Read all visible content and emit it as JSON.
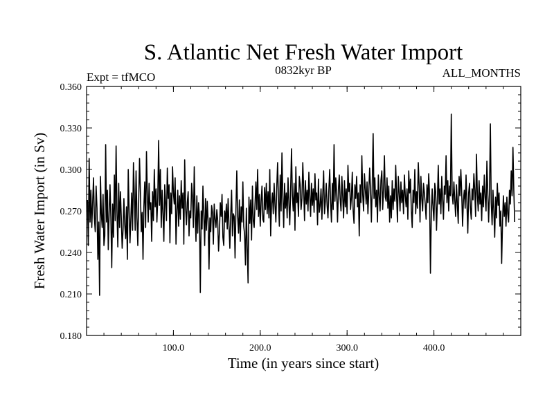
{
  "chart_data": {
    "type": "line",
    "title": "S. Atlantic Net Fresh Water Import",
    "subtitle_left": "Expt = tfMCO",
    "subtitle_center": "0832kyr BP",
    "subtitle_right": "ALL_MONTHS",
    "xlabel": "Time (in years since start)",
    "ylabel": "Fresh Water Import (in Sv)",
    "xlim": [
      0,
      500
    ],
    "ylim": [
      0.18,
      0.36
    ],
    "x_ticks": [
      100,
      200,
      300,
      400
    ],
    "x_tick_labels": [
      "100.0",
      "200.0",
      "300.0",
      "400.0"
    ],
    "y_ticks": [
      0.18,
      0.21,
      0.24,
      0.27,
      0.3,
      0.33,
      0.36
    ],
    "y_tick_labels": [
      "0.180",
      "0.210",
      "0.240",
      "0.270",
      "0.300",
      "0.330",
      "0.360"
    ],
    "series": [
      {
        "name": "fresh_water_import",
        "x_start": 1,
        "x_step": 1,
        "values": [
          0.278,
          0.245,
          0.308,
          0.262,
          0.285,
          0.258,
          0.276,
          0.294,
          0.265,
          0.255,
          0.288,
          0.272,
          0.235,
          0.262,
          0.209,
          0.295,
          0.268,
          0.258,
          0.282,
          0.245,
          0.252,
          0.318,
          0.262,
          0.285,
          0.242,
          0.268,
          0.289,
          0.265,
          0.229,
          0.275,
          0.251,
          0.296,
          0.263,
          0.317,
          0.27,
          0.244,
          0.29,
          0.258,
          0.284,
          0.265,
          0.243,
          0.256,
          0.279,
          0.26,
          0.25,
          0.273,
          0.235,
          0.3,
          0.27,
          0.247,
          0.264,
          0.283,
          0.256,
          0.305,
          0.282,
          0.256,
          0.299,
          0.266,
          0.245,
          0.276,
          0.308,
          0.284,
          0.255,
          0.269,
          0.235,
          0.273,
          0.291,
          0.258,
          0.313,
          0.281,
          0.262,
          0.29,
          0.271,
          0.276,
          0.248,
          0.284,
          0.263,
          0.3,
          0.273,
          0.286,
          0.262,
          0.279,
          0.321,
          0.274,
          0.3,
          0.258,
          0.285,
          0.268,
          0.248,
          0.289,
          0.276,
          0.263,
          0.301,
          0.279,
          0.289,
          0.247,
          0.283,
          0.268,
          0.302,
          0.283,
          0.275,
          0.294,
          0.246,
          0.27,
          0.285,
          0.259,
          0.281,
          0.264,
          0.292,
          0.272,
          0.283,
          0.246,
          0.307,
          0.273,
          0.26,
          0.276,
          0.284,
          0.252,
          0.27,
          0.265,
          0.29,
          0.28,
          0.258,
          0.302,
          0.269,
          0.248,
          0.281,
          0.254,
          0.276,
          0.266,
          0.211,
          0.27,
          0.257,
          0.288,
          0.268,
          0.245,
          0.279,
          0.256,
          0.277,
          0.262,
          0.228,
          0.265,
          0.255,
          0.274,
          0.269,
          0.246,
          0.275,
          0.264,
          0.258,
          0.271,
          0.263,
          0.241,
          0.254,
          0.276,
          0.266,
          0.282,
          0.251,
          0.245,
          0.27,
          0.262,
          0.275,
          0.257,
          0.279,
          0.26,
          0.243,
          0.267,
          0.285,
          0.252,
          0.268,
          0.266,
          0.236,
          0.271,
          0.299,
          0.266,
          0.254,
          0.278,
          0.248,
          0.273,
          0.262,
          0.291,
          0.259,
          0.253,
          0.231,
          0.272,
          0.244,
          0.218,
          0.28,
          0.261,
          0.278,
          0.249,
          0.288,
          0.263,
          0.258,
          0.275,
          0.291,
          0.271,
          0.3,
          0.266,
          0.282,
          0.259,
          0.277,
          0.288,
          0.264,
          0.262,
          0.287,
          0.271,
          0.29,
          0.268,
          0.284,
          0.265,
          0.3,
          0.252,
          0.275,
          0.283,
          0.268,
          0.29,
          0.274,
          0.262,
          0.287,
          0.305,
          0.278,
          0.259,
          0.296,
          0.27,
          0.312,
          0.281,
          0.258,
          0.29,
          0.272,
          0.283,
          0.265,
          0.294,
          0.276,
          0.26,
          0.285,
          0.315,
          0.281,
          0.27,
          0.29,
          0.256,
          0.302,
          0.276,
          0.283,
          0.266,
          0.295,
          0.289,
          0.271,
          0.279,
          0.305,
          0.286,
          0.263,
          0.292,
          0.275,
          0.285,
          0.27,
          0.298,
          0.281,
          0.266,
          0.29,
          0.274,
          0.286,
          0.269,
          0.297,
          0.278,
          0.283,
          0.26,
          0.293,
          0.269,
          0.274,
          0.286,
          0.264,
          0.282,
          0.299,
          0.268,
          0.277,
          0.29,
          0.274,
          0.265,
          0.285,
          0.3,
          0.276,
          0.262,
          0.29,
          0.271,
          0.318,
          0.277,
          0.294,
          0.283,
          0.262,
          0.285,
          0.296,
          0.279,
          0.27,
          0.295,
          0.28,
          0.265,
          0.292,
          0.273,
          0.286,
          0.268,
          0.303,
          0.284,
          0.29,
          0.271,
          0.28,
          0.298,
          0.27,
          0.261,
          0.289,
          0.279,
          0.295,
          0.273,
          0.283,
          0.252,
          0.289,
          0.276,
          0.31,
          0.282,
          0.27,
          0.297,
          0.286,
          0.275,
          0.291,
          0.268,
          0.284,
          0.301,
          0.285,
          0.262,
          0.289,
          0.326,
          0.279,
          0.294,
          0.273,
          0.285,
          0.262,
          0.296,
          0.281,
          0.27,
          0.292,
          0.299,
          0.271,
          0.286,
          0.31,
          0.28,
          0.277,
          0.294,
          0.272,
          0.288,
          0.262,
          0.281,
          0.265,
          0.292,
          0.271,
          0.286,
          0.277,
          0.303,
          0.282,
          0.262,
          0.295,
          0.283,
          0.27,
          0.291,
          0.276,
          0.285,
          0.268,
          0.296,
          0.281,
          0.273,
          0.286,
          0.264,
          0.299,
          0.283,
          0.293,
          0.27,
          0.258,
          0.285,
          0.276,
          0.3,
          0.268,
          0.284,
          0.272,
          0.305,
          0.288,
          0.262,
          0.295,
          0.279,
          0.27,
          0.29,
          0.283,
          0.275,
          0.264,
          0.289,
          0.276,
          0.297,
          0.281,
          0.225,
          0.268,
          0.286,
          0.272,
          0.263,
          0.29,
          0.284,
          0.256,
          0.278,
          0.303,
          0.275,
          0.286,
          0.268,
          0.295,
          0.279,
          0.264,
          0.288,
          0.282,
          0.31,
          0.276,
          0.292,
          0.27,
          0.288,
          0.281,
          0.34,
          0.283,
          0.275,
          0.291,
          0.278,
          0.266,
          0.289,
          0.274,
          0.261,
          0.295,
          0.281,
          0.3,
          0.283,
          0.259,
          0.278,
          0.285,
          0.272,
          0.296,
          0.276,
          0.254,
          0.283,
          0.29,
          0.272,
          0.264,
          0.286,
          0.278,
          0.297,
          0.285,
          0.266,
          0.311,
          0.282,
          0.27,
          0.292,
          0.275,
          0.283,
          0.263,
          0.288,
          0.273,
          0.296,
          0.28,
          0.27,
          0.306,
          0.284,
          0.262,
          0.283,
          0.333,
          0.276,
          0.26,
          0.285,
          0.27,
          0.251,
          0.28,
          0.265,
          0.29,
          0.274,
          0.283,
          0.259,
          0.27,
          0.232,
          0.262,
          0.281,
          0.266,
          0.276,
          0.259,
          0.28,
          0.268,
          0.262,
          0.285,
          0.275,
          0.299,
          0.281,
          0.316,
          0.285,
          0.262
        ]
      }
    ]
  }
}
